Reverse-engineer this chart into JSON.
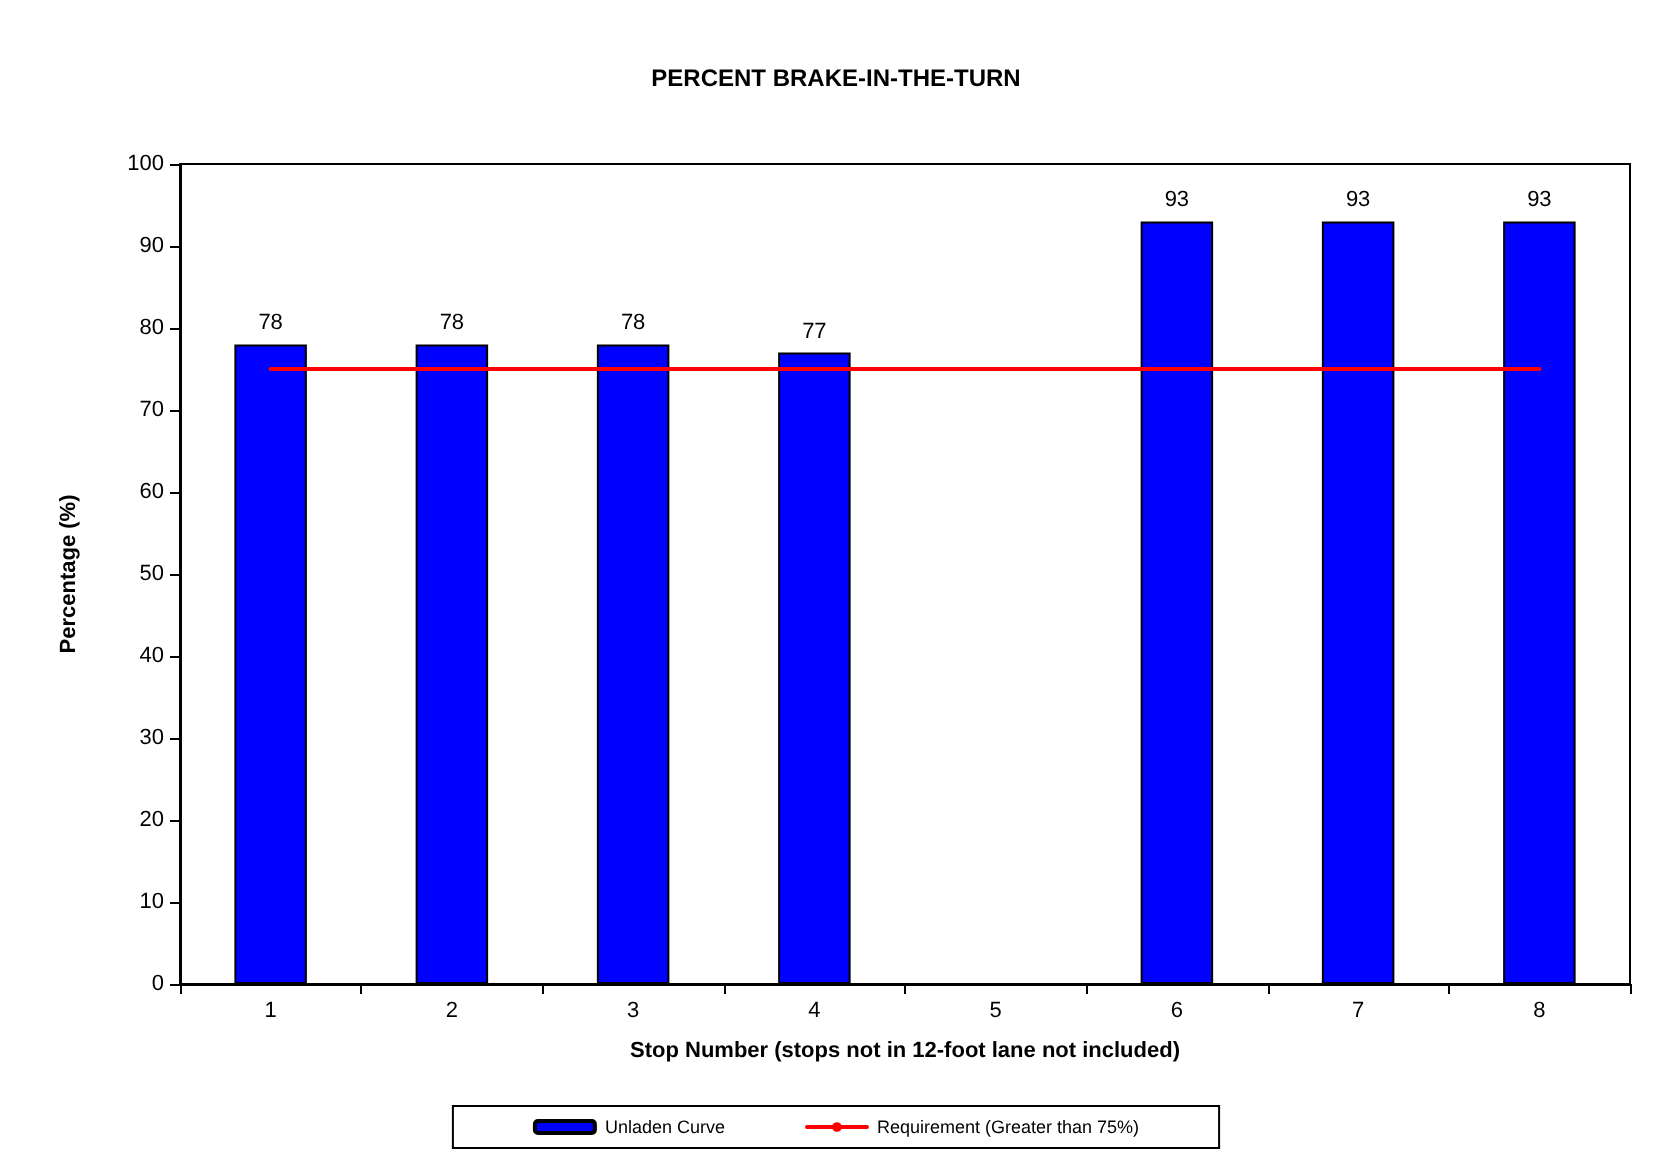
{
  "chart_data": {
    "type": "bar",
    "title": "PERCENT BRAKE-IN-THE-TURN",
    "xlabel": "Stop Number (stops not in 12-foot lane not included)",
    "ylabel": "Percentage (%)",
    "categories": [
      "1",
      "2",
      "3",
      "4",
      "5",
      "6",
      "7",
      "8"
    ],
    "series": [
      {
        "name": "Unladen Curve",
        "color": "#0000ff",
        "values": [
          78,
          78,
          78,
          77,
          null,
          93,
          93,
          93
        ],
        "value_labels": [
          "78",
          "78",
          "78",
          "77",
          null,
          "93",
          "93",
          "93"
        ]
      },
      {
        "name": "Requirement (Greater than 75%)",
        "type": "line",
        "color": "#ff0000",
        "values": [
          75,
          75,
          75,
          75,
          75,
          75,
          75,
          75
        ]
      }
    ],
    "ylim": [
      0,
      100
    ],
    "yticks": [
      0,
      10,
      20,
      30,
      40,
      50,
      60,
      70,
      80,
      90,
      100
    ],
    "grid": false,
    "legend": "bottom",
    "marker": "none",
    "line_style": "solid"
  }
}
